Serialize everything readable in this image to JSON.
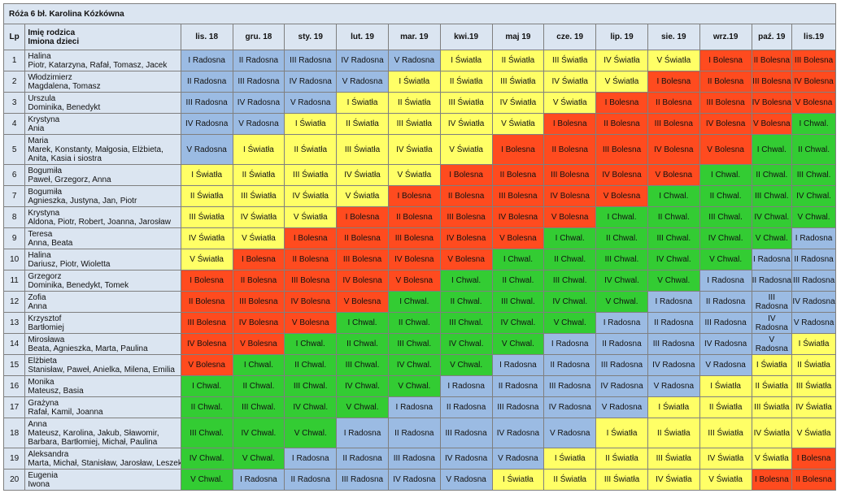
{
  "title": "Róża 6 bł. Karolina Kózkówna",
  "headers": {
    "lp": "Lp",
    "parent": "Imię rodzica",
    "children": "Imiona dzieci"
  },
  "months": [
    "lis. 18",
    "gru. 18",
    "sty. 19",
    "lut. 19",
    "mar. 19",
    "kwi.19",
    "maj 19",
    "cze. 19",
    "lip. 19",
    "sie. 19",
    "wrz.19",
    "paź. 19",
    "lis.19"
  ],
  "colors": {
    "Radosna": "#9bbbe3",
    "Światła": "#ffff66",
    "Bolesna": "#ff4b1f",
    "Chwal.": "#33cc33",
    "header": "#dbe5f1"
  },
  "rows": [
    {
      "lp": "1",
      "parent": "Halina",
      "children": [
        "Piotr, Katarzyna, Rafał, Tomasz, Jacek"
      ],
      "cells": [
        "I Radosna",
        "II Radosna",
        "III Radosna",
        "IV Radosna",
        "V Radosna",
        "I Światła",
        "II Światła",
        "III Światła",
        "IV Światła",
        "V Światła",
        "I Bolesna",
        "II Bolesna",
        "III Bolesna"
      ]
    },
    {
      "lp": "2",
      "parent": "Włodzimierz",
      "children": [
        "Magdalena, Tomasz"
      ],
      "cells": [
        "II Radosna",
        "III Radosna",
        "IV Radosna",
        "V Radosna",
        "I Światła",
        "II Światła",
        "III Światła",
        "IV Światła",
        "V Światła",
        "I Bolesna",
        "II Bolesna",
        "III Bolesna",
        "IV Bolesna"
      ]
    },
    {
      "lp": "3",
      "parent": "Urszula",
      "children": [
        "Dominika, Benedykt"
      ],
      "cells": [
        "III Radosna",
        "IV Radosna",
        "V Radosna",
        "I Światła",
        "II Światła",
        "III Światła",
        "IV Światła",
        "V Światła",
        "I Bolesna",
        "II Bolesna",
        "III Bolesna",
        "IV Bolesna",
        "V Bolesna"
      ]
    },
    {
      "lp": "4",
      "parent": "Krystyna",
      "children": [
        "Ania"
      ],
      "cells": [
        "IV Radosna",
        "V Radosna",
        "I Światła",
        "II Światła",
        "III Światła",
        "IV Światła",
        "V Światła",
        "I Bolesna",
        "II Bolesna",
        "III Bolesna",
        "IV Bolesna",
        "V Bolesna",
        "I Chwal."
      ]
    },
    {
      "lp": "5",
      "parent": "Maria",
      "children": [
        "Marek, Konstanty, Małgosia, Elżbieta,",
        "Anita, Kasia i siostra"
      ],
      "cells": [
        "V Radosna",
        "I Światła",
        "II Światła",
        "III Światła",
        "IV Światła",
        "V Światła",
        "I Bolesna",
        "II Bolesna",
        "III Bolesna",
        "IV Bolesna",
        "V Bolesna",
        "I Chwal.",
        "II Chwal."
      ]
    },
    {
      "lp": "6",
      "parent": "Bogumiła",
      "children": [
        "Paweł, Grzegorz, Anna"
      ],
      "cells": [
        "I Światła",
        "II Światła",
        "III Światła",
        "IV Światła",
        "V Światła",
        "I Bolesna",
        "II Bolesna",
        "III Bolesna",
        "IV Bolesna",
        "V Bolesna",
        "I Chwal.",
        "II Chwal.",
        "III Chwal."
      ]
    },
    {
      "lp": "7",
      "parent": "Bogumiła",
      "children": [
        "Agnieszka, Justyna, Jan, Piotr"
      ],
      "cells": [
        "II Światła",
        "III Światła",
        "IV Światła",
        "V Światła",
        "I Bolesna",
        "II Bolesna",
        "III Bolesna",
        "IV Bolesna",
        "V Bolesna",
        "I Chwal.",
        "II Chwal.",
        "III Chwal.",
        "IV Chwal."
      ]
    },
    {
      "lp": "8",
      "parent": "Krystyna",
      "children": [
        "Aldona, Piotr, Robert, Joanna, Jarosław"
      ],
      "cells": [
        "III Światła",
        "IV Światła",
        "V Światła",
        "I Bolesna",
        "II Bolesna",
        "III Bolesna",
        "IV Bolesna",
        "V Bolesna",
        "I Chwal.",
        "II Chwal.",
        "III Chwal.",
        "IV Chwal.",
        "V Chwal."
      ]
    },
    {
      "lp": "9",
      "parent": "Teresa",
      "children": [
        "Anna, Beata"
      ],
      "cells": [
        "IV Światła",
        "V Światła",
        "I Bolesna",
        "II Bolesna",
        "III Bolesna",
        "IV Bolesna",
        "V Bolesna",
        "I Chwal.",
        "II Chwal.",
        "III Chwal.",
        "IV Chwal.",
        "V Chwal.",
        "I Radosna"
      ]
    },
    {
      "lp": "10",
      "parent": "Halina",
      "children": [
        "Dariusz, Piotr, Wioletta"
      ],
      "cells": [
        "V Światła",
        "I Bolesna",
        "II Bolesna",
        "III Bolesna",
        "IV Bolesna",
        "V Bolesna",
        "I Chwal.",
        "II Chwal.",
        "III Chwal.",
        "IV Chwal.",
        "V Chwal.",
        "I Radosna",
        "II Radosna"
      ]
    },
    {
      "lp": "11",
      "parent": "Grzegorz",
      "children": [
        "Dominika, Benedykt, Tomek"
      ],
      "cells": [
        "I Bolesna",
        "II Bolesna",
        "III Bolesna",
        "IV Bolesna",
        "V Bolesna",
        "I Chwal.",
        "II Chwal.",
        "III Chwal.",
        "IV Chwal.",
        "V Chwal.",
        "I Radosna",
        "II Radosna",
        "III Radosna"
      ]
    },
    {
      "lp": "12",
      "parent": "Zofia",
      "children": [
        "Anna"
      ],
      "cells": [
        "II Bolesna",
        "III Bolesna",
        "IV Bolesna",
        "V Bolesna",
        "I Chwal.",
        "II Chwal.",
        "III Chwal.",
        "IV Chwal.",
        "V Chwal.",
        "I Radosna",
        "II Radosna",
        "III Radosna",
        "IV Radosna"
      ]
    },
    {
      "lp": "13",
      "parent": "Krzysztof",
      "children": [
        "Bartłomiej"
      ],
      "cells": [
        "III Bolesna",
        "IV Bolesna",
        "V Bolesna",
        "I Chwal.",
        "II Chwal.",
        "III Chwal.",
        "IV Chwal.",
        "V Chwal.",
        "I Radosna",
        "II Radosna",
        "III Radosna",
        "IV Radosna",
        "V Radosna"
      ]
    },
    {
      "lp": "14",
      "parent": "Mirosława",
      "children": [
        "Beata, Agnieszka, Marta, Paulina"
      ],
      "cells": [
        "IV Bolesna",
        "V Bolesna",
        "I Chwal.",
        "II Chwal.",
        "III Chwal.",
        "IV Chwal.",
        "V Chwal.",
        "I Radosna",
        "II Radosna",
        "III Radosna",
        "IV Radosna",
        "V Radosna",
        "I Światła"
      ]
    },
    {
      "lp": "15",
      "parent": "Elżbieta",
      "children": [
        "Stanisław, Paweł, Anielka, Milena, Emilia"
      ],
      "cells": [
        "V Bolesna",
        "I Chwal.",
        "II Chwal.",
        "III Chwal.",
        "IV Chwal.",
        "V Chwal.",
        "I Radosna",
        "II Radosna",
        "III Radosna",
        "IV Radosna",
        "V Radosna",
        "I Światła",
        "II Światła"
      ]
    },
    {
      "lp": "16",
      "parent": "Monika",
      "children": [
        "Mateusz, Basia"
      ],
      "cells": [
        "I Chwal.",
        "II Chwal.",
        "III Chwal.",
        "IV Chwal.",
        "V Chwal.",
        "I Radosna",
        "II Radosna",
        "III Radosna",
        "IV Radosna",
        "V Radosna",
        "I Światła",
        "II Światła",
        "III Światła"
      ]
    },
    {
      "lp": "17",
      "parent": "Grażyna",
      "children": [
        "Rafał, Kamil, Joanna"
      ],
      "cells": [
        "II Chwal.",
        "III Chwal.",
        "IV Chwal.",
        "V Chwal.",
        "I Radosna",
        "II Radosna",
        "III Radosna",
        "IV Radosna",
        "V Radosna",
        "I Światła",
        "II Światła",
        "III Światła",
        "IV Światła"
      ]
    },
    {
      "lp": "18",
      "parent": "Anna",
      "children": [
        "Mateusz, Karolina, Jakub, Sławomir,",
        "Barbara, Bartłomiej, Michał, Paulina"
      ],
      "cells": [
        "III Chwal.",
        "IV Chwal.",
        "V Chwal.",
        "I Radosna",
        "II Radosna",
        "III Radosna",
        "IV Radosna",
        "V Radosna",
        "I Światła",
        "II Światła",
        "III Światła",
        "IV Światła",
        "V Światła"
      ]
    },
    {
      "lp": "19",
      "parent": "Aleksandra",
      "children": [
        "Marta, Michał, Stanisław, Jarosław, Leszek"
      ],
      "cells": [
        "IV Chwal.",
        "V Chwal.",
        "I Radosna",
        "II Radosna",
        "III Radosna",
        "IV Radosna",
        "V Radosna",
        "I Światła",
        "II Światła",
        "III Światła",
        "IV Światła",
        "V Światła",
        "I Bolesna"
      ]
    },
    {
      "lp": "20",
      "parent": "Eugenia",
      "children": [
        "Iwona"
      ],
      "cells": [
        "V Chwal.",
        "I Radosna",
        "II Radosna",
        "III Radosna",
        "IV Radosna",
        "V Radosna",
        "I Światła",
        "II Światła",
        "III Światła",
        "IV Światła",
        "V Światła",
        "I Bolesna",
        "II Bolesna"
      ]
    }
  ]
}
